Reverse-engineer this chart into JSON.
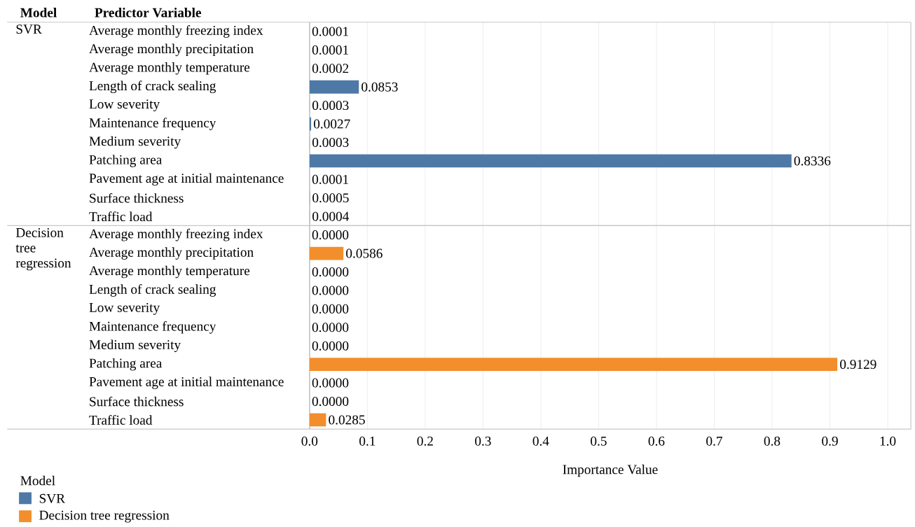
{
  "chart_data": {
    "type": "bar",
    "orientation": "horizontal",
    "xlabel": "Importance Value",
    "ylabel": "Predictor Variable",
    "legend_title": "Model",
    "legend": "bottom left",
    "grid": "x",
    "categories": [
      "Average monthly freezing index",
      "Average monthly precipitation",
      "Average monthly temperature",
      "Length of crack sealing",
      "Low severity",
      "Maintenance frequency",
      "Medium severity",
      "Patching area",
      "Pavement age at initial maintenance",
      "Surface thickness",
      "Traffic load",
      "Average monthly freezing index",
      "Average monthly precipitation",
      "Average monthly temperature",
      "Length of crack sealing",
      "Low severity",
      "Maintenance frequency",
      "Medium severity",
      "Patching area",
      "Pavement age at initial maintenance",
      "Surface thickness",
      "Traffic load"
    ],
    "xlim": [
      0,
      1.04
    ],
    "xticks": [
      {
        "value": 0,
        "label": "0.0"
      },
      0.1,
      0.2,
      0.3,
      0.4,
      0.5,
      0.6,
      0.7,
      0.8,
      0.9,
      {
        "value": 1,
        "label": "1.0"
      }
    ],
    "series": [
      {
        "name": "SVR",
        "color": "#4e79a7",
        "values": [
          0.0001,
          0.0001,
          0.0002,
          0.0853,
          0.0003,
          0.0027,
          0.0003,
          0.8336,
          0.0001,
          0.0005,
          0.0004,
          null,
          null,
          null,
          null,
          null,
          null,
          null,
          null,
          null,
          null,
          null
        ],
        "value_labels": [
          "0.0001",
          "0.0001",
          "0.0002",
          "0.0853",
          "0.0003",
          "0.0027",
          "0.0003",
          "0.8336",
          "0.0001",
          "0.0005",
          "0.0004",
          null,
          null,
          null,
          null,
          null,
          null,
          null,
          null,
          null,
          null,
          null
        ]
      },
      {
        "name": "Decision tree regression",
        "color": "#f28e2b",
        "values": [
          null,
          null,
          null,
          null,
          null,
          null,
          null,
          null,
          null,
          null,
          null,
          0,
          0.0586,
          0,
          0,
          0,
          0,
          0,
          0.9129,
          0,
          0,
          0.0285
        ],
        "value_labels": [
          null,
          null,
          null,
          null,
          null,
          null,
          null,
          null,
          null,
          null,
          null,
          "0.0000",
          "0.0586",
          "0.0000",
          "0.0000",
          "0.0000",
          "0.0000",
          "0.0000",
          "0.9129",
          "0.0000",
          "0.0000",
          "0.0285"
        ]
      }
    ]
  }
}
